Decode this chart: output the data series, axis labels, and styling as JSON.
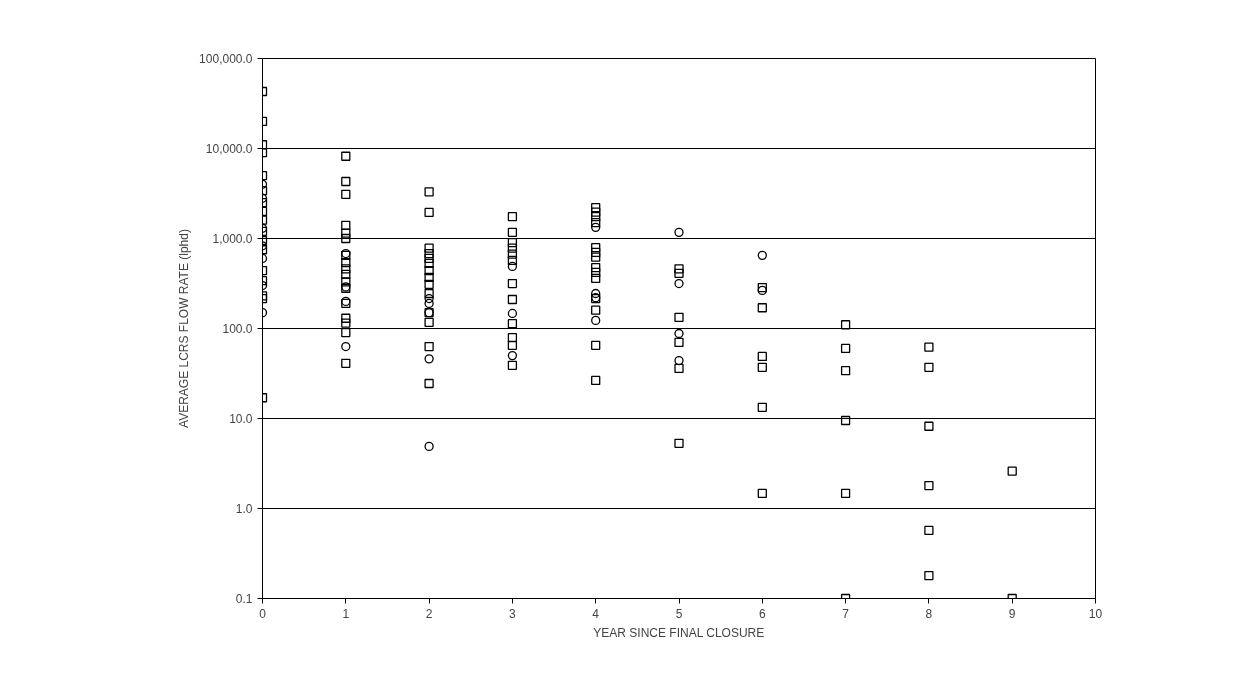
{
  "chart_data": {
    "type": "scatter",
    "xlabel": "YEAR SINCE FINAL CLOSURE",
    "ylabel": "AVERAGE LCRS FLOW RATE (lphd)",
    "log": "y",
    "grid": "y",
    "xlim": [
      0,
      10
    ],
    "xticks": [
      0,
      1,
      2,
      3,
      4,
      5,
      6,
      7,
      8,
      9,
      10
    ],
    "ylim": [
      0.1,
      100000
    ],
    "yticks": [
      {
        "value": 0.1,
        "label": "0.1"
      },
      {
        "value": 1,
        "label": "1.0"
      },
      {
        "value": 10,
        "label": "10.0"
      },
      {
        "value": 100,
        "label": "100.0"
      },
      {
        "value": 1000,
        "label": "1,000.0"
      },
      {
        "value": 10000,
        "label": "10,000.0"
      },
      {
        "value": 100000,
        "label": "100,000.0"
      }
    ],
    "series": [
      {
        "marker": "square",
        "color": "#000000",
        "x": [
          0,
          0,
          0,
          0,
          0,
          0,
          0,
          0,
          0,
          0,
          0,
          0,
          0,
          0,
          0,
          0,
          0,
          1,
          1,
          1,
          1,
          1,
          1,
          1,
          1,
          1,
          1,
          1,
          1,
          1,
          1,
          1,
          1,
          1,
          2,
          2,
          2,
          2,
          2,
          2,
          2,
          2,
          2,
          2,
          2,
          2,
          2,
          2,
          3,
          3,
          3,
          3,
          3,
          3,
          3,
          3,
          3,
          3,
          3,
          3,
          4,
          4,
          4,
          4,
          4,
          4,
          4,
          4,
          4,
          4,
          4,
          4,
          4,
          4,
          5,
          5,
          5,
          5,
          5,
          5,
          6,
          6,
          6,
          6,
          6,
          6,
          7,
          7,
          7,
          7,
          7,
          7,
          8,
          8,
          8,
          8,
          8,
          8,
          9,
          9
        ],
        "values": [
          43000,
          20000,
          11000,
          9000,
          5000,
          3400,
          2500,
          2000,
          1600,
          1200,
          950,
          750,
          440,
          340,
          230,
          215,
          17,
          8200,
          4300,
          3100,
          1400,
          1150,
          1000,
          650,
          540,
          460,
          400,
          330,
          280,
          190,
          130,
          115,
          90,
          41,
          3300,
          1950,
          780,
          680,
          600,
          530,
          440,
          370,
          310,
          245,
          150,
          117,
          63,
          24.5,
          1750,
          1170,
          900,
          780,
          670,
          570,
          316,
          210,
          113,
          79,
          65,
          39,
          2200,
          1960,
          1750,
          1500,
          790,
          700,
          620,
          475,
          420,
          360,
          215,
          160,
          65,
          26.5,
          460,
          410,
          133,
          70,
          36,
          5.3,
          285,
          170,
          49,
          37,
          13.3,
          1.47,
          110,
          60,
          34,
          9.5,
          1.47,
          0.1,
          62,
          37,
          8.2,
          1.8,
          0.57,
          0.18,
          2.6,
          0.1
        ]
      },
      {
        "marker": "circle",
        "color": "#000000",
        "x": [
          0,
          0,
          0,
          0,
          0,
          0,
          0,
          1,
          1,
          1,
          1,
          2,
          2,
          2,
          2,
          2,
          3,
          3,
          3,
          4,
          4,
          4,
          4,
          5,
          5,
          5,
          5,
          6,
          6
        ],
        "values": [
          4000,
          2800,
          1300,
          830,
          600,
          300,
          150,
          680,
          290,
          200,
          63,
          215,
          190,
          150,
          46,
          4.9,
          490,
          147,
          50,
          1330,
          245,
          220,
          123,
          1170,
          316,
          88,
          44,
          650,
          265
        ]
      }
    ]
  }
}
